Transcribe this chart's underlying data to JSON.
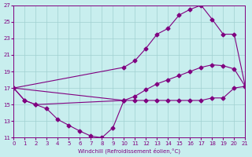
{
  "xlabel": "Windchill (Refroidissement éolien,°C)",
  "background_color": "#c8eeee",
  "grid_color": "#a0d0d0",
  "line_color": "#800080",
  "xmin": 0,
  "xmax": 21,
  "ymin": 11,
  "ymax": 27,
  "yticks": [
    11,
    13,
    15,
    17,
    19,
    21,
    23,
    25,
    27
  ],
  "xticks": [
    0,
    1,
    2,
    3,
    4,
    5,
    6,
    7,
    8,
    9,
    10,
    11,
    12,
    13,
    14,
    15,
    16,
    17,
    18,
    19,
    20,
    21
  ],
  "curve_top_x": [
    0,
    10,
    11,
    12,
    13,
    14,
    15,
    16,
    17,
    18,
    19,
    20,
    21
  ],
  "curve_top_y": [
    17.0,
    19.5,
    20.3,
    21.8,
    23.5,
    24.2,
    25.8,
    26.5,
    27.0,
    25.3,
    23.5,
    23.5,
    17.2
  ],
  "curve_mid_x": [
    0,
    10,
    11,
    12,
    13,
    14,
    15,
    16,
    17,
    18,
    19,
    20,
    21
  ],
  "curve_mid_y": [
    17.0,
    15.5,
    16.0,
    16.8,
    17.5,
    18.0,
    18.5,
    19.0,
    19.5,
    19.8,
    19.7,
    19.3,
    17.2
  ],
  "curve_flat_x": [
    0,
    1,
    2,
    10,
    11,
    12,
    13,
    14,
    15,
    16,
    17,
    18,
    19,
    20,
    21
  ],
  "curve_flat_y": [
    17.0,
    15.5,
    15.0,
    15.5,
    15.5,
    15.5,
    15.5,
    15.5,
    15.5,
    15.5,
    15.5,
    15.8,
    15.8,
    17.0,
    17.2
  ],
  "curve_dip_x": [
    0,
    1,
    2,
    3,
    4,
    5,
    6,
    7,
    8,
    9,
    10
  ],
  "curve_dip_y": [
    17.0,
    15.5,
    15.0,
    14.5,
    13.2,
    12.5,
    11.8,
    11.2,
    11.0,
    12.2,
    15.5
  ],
  "marker": "D",
  "markersize": 2.5
}
